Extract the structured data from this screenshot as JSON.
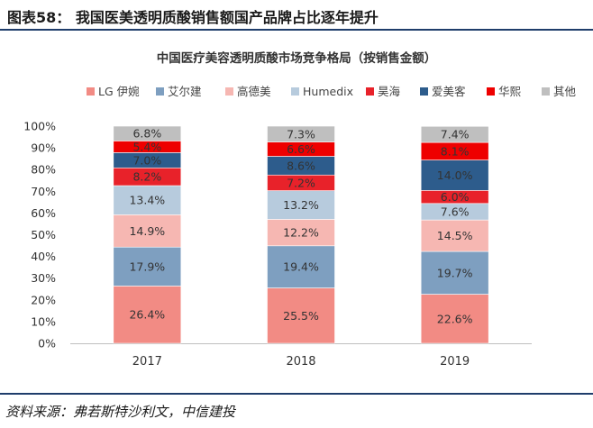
{
  "figure": {
    "title": "图表58： 我国医美透明质酸销售额国产品牌占比逐年提升",
    "source": "资料来源：弗若斯特沙利文，中信建投"
  },
  "chart_data": {
    "type": "bar",
    "stacked": true,
    "title": "中国医疗美容透明质酸市场竞争格局（按销售金额）",
    "categories": [
      "2017",
      "2018",
      "2019"
    ],
    "ylim": [
      0,
      100
    ],
    "yticks": [
      "0%",
      "10%",
      "20%",
      "30%",
      "40%",
      "50%",
      "60%",
      "70%",
      "80%",
      "90%",
      "100%"
    ],
    "legend_position": "top",
    "grid": false,
    "series": [
      {
        "name": "LG 伊婉",
        "color": "#f28b84",
        "values": [
          26.4,
          25.5,
          22.6
        ],
        "labels": [
          "26.4%",
          "25.5%",
          "22.6%"
        ]
      },
      {
        "name": "艾尔建",
        "color": "#7e9fc0",
        "values": [
          17.9,
          19.4,
          19.7
        ],
        "labels": [
          "17.9%",
          "19.4%",
          "19.7%"
        ]
      },
      {
        "name": "高德美",
        "color": "#f6b7b2",
        "values": [
          14.9,
          12.2,
          14.5
        ],
        "labels": [
          "14.9%",
          "12.2%",
          "14.5%"
        ]
      },
      {
        "name": "Humedix",
        "color": "#b7cbdd",
        "values": [
          13.4,
          13.2,
          7.6
        ],
        "labels": [
          "13.4%",
          "13.2%",
          "7.6%"
        ]
      },
      {
        "name": "昊海",
        "color": "#e8222a",
        "values": [
          8.2,
          7.2,
          6.0
        ],
        "labels": [
          "8.2%",
          "7.2%",
          "6.0%"
        ]
      },
      {
        "name": "爱美客",
        "color": "#2d5c8c",
        "values": [
          7.0,
          8.6,
          14.0
        ],
        "labels": [
          "7.0%",
          "8.6%",
          "14.0%"
        ]
      },
      {
        "name": "华熙",
        "color": "#ee0000",
        "values": [
          5.4,
          6.6,
          8.1
        ],
        "labels": [
          "5.4%",
          "6.6%",
          "8.1%"
        ]
      },
      {
        "name": "其他",
        "color": "#bfbfbf",
        "values": [
          6.8,
          7.3,
          7.4
        ],
        "labels": [
          "6.8%",
          "7.3%",
          "7.4%"
        ]
      }
    ]
  }
}
